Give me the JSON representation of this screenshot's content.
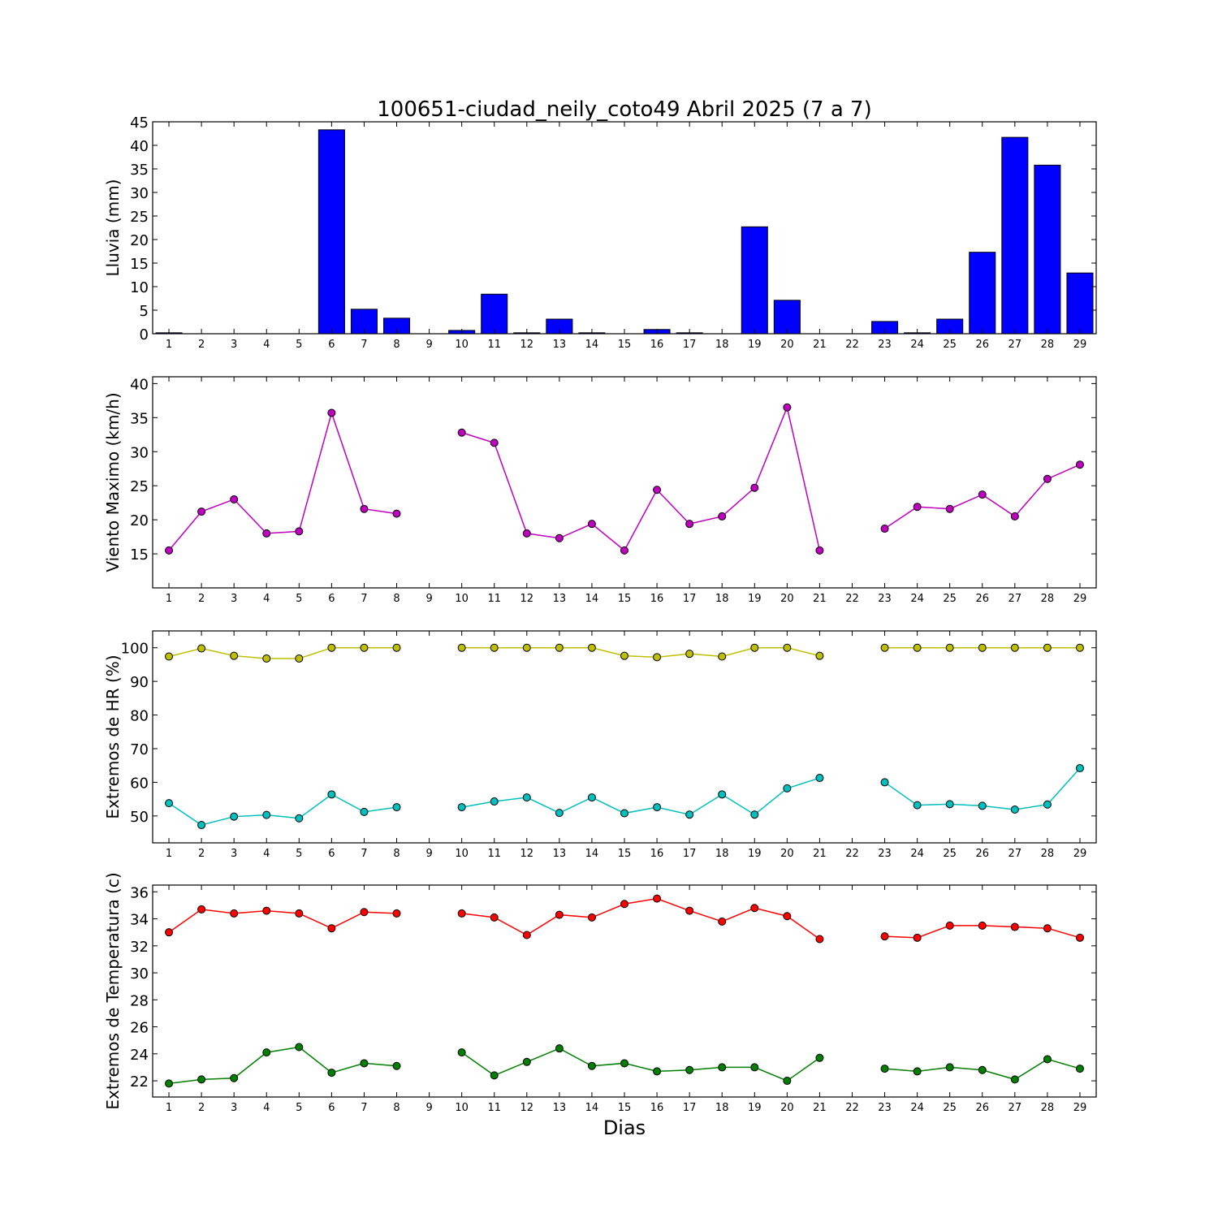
{
  "title": "100651-ciudad_neily_coto49 Abril 2025  (7 a 7)",
  "xlabel": "Dias",
  "chart_data": [
    {
      "type": "bar",
      "ylabel": "Lluvia (mm)",
      "ylim": [
        0,
        45
      ],
      "yticks": [
        0,
        5,
        10,
        15,
        20,
        25,
        30,
        35,
        40,
        45
      ],
      "x": [
        1,
        2,
        3,
        4,
        5,
        6,
        7,
        8,
        9,
        10,
        11,
        12,
        13,
        14,
        15,
        16,
        17,
        18,
        19,
        20,
        21,
        22,
        23,
        24,
        25,
        26,
        27,
        28,
        29
      ],
      "series": [
        {
          "color": "#0000ff",
          "values": [
            0.2,
            0,
            0,
            0,
            0,
            43.3,
            5.2,
            3.3,
            0,
            0.7,
            8.4,
            0.2,
            3.1,
            0.2,
            0,
            0.9,
            0.2,
            0,
            22.7,
            7.1,
            0,
            0,
            2.6,
            0.2,
            3.1,
            17.3,
            41.7,
            35.8,
            12.9
          ]
        }
      ]
    },
    {
      "type": "line",
      "ylabel": "Viento Maximo (km/h)",
      "ylim": [
        10,
        41
      ],
      "yticks": [
        15,
        20,
        25,
        30,
        35,
        40
      ],
      "x": [
        1,
        2,
        3,
        4,
        5,
        6,
        7,
        8,
        9,
        10,
        11,
        12,
        13,
        14,
        15,
        16,
        17,
        18,
        19,
        20,
        21,
        22,
        23,
        24,
        25,
        26,
        27,
        28,
        29
      ],
      "series": [
        {
          "color": "#bf00bf",
          "values": [
            15.5,
            21.2,
            23.0,
            18.0,
            18.3,
            35.7,
            21.6,
            20.9,
            null,
            32.8,
            31.3,
            18.0,
            17.3,
            19.4,
            15.5,
            24.4,
            19.4,
            20.5,
            24.7,
            36.5,
            15.5,
            null,
            18.7,
            21.9,
            21.6,
            23.7,
            20.5,
            26.0,
            28.1
          ]
        }
      ]
    },
    {
      "type": "line",
      "ylabel": "Extremos de HR (%)",
      "ylim": [
        42,
        105
      ],
      "yticks": [
        50,
        60,
        70,
        80,
        90,
        100
      ],
      "x": [
        1,
        2,
        3,
        4,
        5,
        6,
        7,
        8,
        9,
        10,
        11,
        12,
        13,
        14,
        15,
        16,
        17,
        18,
        19,
        20,
        21,
        22,
        23,
        24,
        25,
        26,
        27,
        28,
        29
      ],
      "series": [
        {
          "color": "#bfbf00",
          "values": [
            97.4,
            99.8,
            97.6,
            96.8,
            96.8,
            100,
            100,
            100,
            null,
            100,
            100,
            100,
            100,
            100,
            97.6,
            97.2,
            98.2,
            97.4,
            100,
            100,
            97.6,
            null,
            100,
            100,
            100,
            100,
            100,
            100,
            100
          ]
        },
        {
          "color": "#00bfbf",
          "values": [
            53.8,
            47.3,
            49.8,
            50.3,
            49.3,
            56.4,
            51.2,
            52.6,
            null,
            52.6,
            54.3,
            55.5,
            50.9,
            55.5,
            50.8,
            52.6,
            50.4,
            56.4,
            50.4,
            58.2,
            61.3,
            null,
            60.0,
            53.2,
            53.5,
            53.0,
            51.9,
            53.4,
            64.2
          ]
        }
      ]
    },
    {
      "type": "line",
      "ylabel": "Extremos de Temperatura (c)",
      "ylim": [
        20.8,
        36.5
      ],
      "yticks": [
        22,
        24,
        26,
        28,
        30,
        32,
        34,
        36
      ],
      "x": [
        1,
        2,
        3,
        4,
        5,
        6,
        7,
        8,
        9,
        10,
        11,
        12,
        13,
        14,
        15,
        16,
        17,
        18,
        19,
        20,
        21,
        22,
        23,
        24,
        25,
        26,
        27,
        28,
        29
      ],
      "series": [
        {
          "color": "#ff0000",
          "values": [
            33.0,
            34.7,
            34.4,
            34.6,
            34.4,
            33.3,
            34.5,
            34.4,
            null,
            34.4,
            34.1,
            32.8,
            34.3,
            34.1,
            35.1,
            35.5,
            34.6,
            33.8,
            34.8,
            34.2,
            32.5,
            null,
            32.7,
            32.6,
            33.5,
            33.5,
            33.4,
            33.3,
            32.6
          ]
        },
        {
          "color": "#007f00",
          "values": [
            21.8,
            22.1,
            22.2,
            24.1,
            24.5,
            22.6,
            23.3,
            23.1,
            null,
            24.1,
            22.4,
            23.4,
            24.4,
            23.1,
            23.3,
            22.7,
            22.8,
            23.0,
            23.0,
            22.0,
            23.7,
            null,
            22.9,
            22.7,
            23.0,
            22.8,
            22.1,
            23.6,
            22.9
          ]
        }
      ]
    }
  ]
}
